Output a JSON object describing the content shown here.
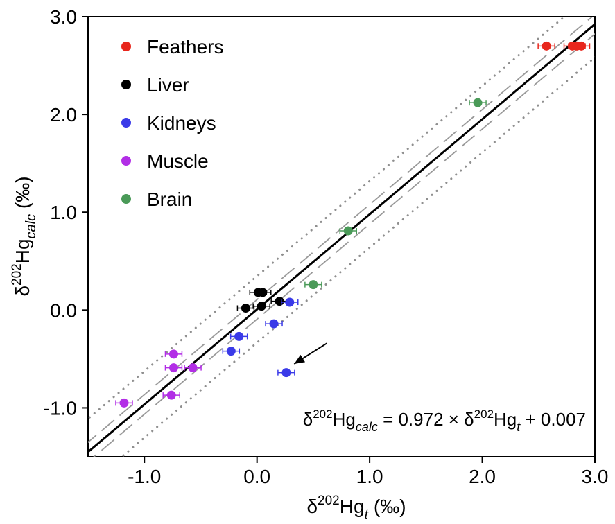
{
  "chart_data": {
    "type": "scatter",
    "xlabel": {
      "prefix": "δ",
      "sup": "202",
      "base": "Hg",
      "sub": "t",
      "unit": " (‰)"
    },
    "ylabel": {
      "prefix": "δ",
      "sup": "202",
      "base": "Hg",
      "sub": "calc",
      "unit": " (‰)"
    },
    "xlim": [
      -1.5,
      3.0
    ],
    "ylim": [
      -1.5,
      3.0
    ],
    "xticks": [
      -1.0,
      0.0,
      1.0,
      2.0,
      3.0
    ],
    "xtick_labels": [
      "-1.0",
      "0.0",
      "1.0",
      "2.0",
      "3.0"
    ],
    "yticks": [
      -1.0,
      0.0,
      1.0,
      2.0,
      3.0
    ],
    "ytick_labels": [
      "-1.0",
      "0.0",
      "1.0",
      "2.0",
      "3.0"
    ],
    "grid": false,
    "legend_position": "top-left",
    "fit": {
      "slope": 0.972,
      "intercept": 0.007,
      "confidence_band": 0.1,
      "prediction_band": 0.34
    },
    "equation": {
      "lhs_sup": "202",
      "lhs_base": "Hg",
      "lhs_sub": "calc",
      "middle": " = 0.972 × ",
      "rhs_sup": "202",
      "rhs_base": "Hg",
      "rhs_sub": "t",
      "tail": " + 0.007",
      "delta": "δ"
    },
    "series": [
      {
        "name": "Feathers",
        "color": "#e8261c",
        "points": [
          [
            2.57,
            2.7
          ],
          [
            2.8,
            2.7
          ],
          [
            2.84,
            2.7
          ],
          [
            2.88,
            2.7
          ]
        ]
      },
      {
        "name": "Liver",
        "color": "#000000",
        "points": [
          [
            -0.1,
            0.02
          ],
          [
            0.01,
            0.18
          ],
          [
            0.05,
            0.18
          ],
          [
            0.04,
            0.04
          ],
          [
            0.2,
            0.09
          ]
        ]
      },
      {
        "name": "Kidneys",
        "color": "#3a3ae8",
        "points": [
          [
            0.29,
            0.08
          ],
          [
            0.15,
            -0.14
          ],
          [
            -0.16,
            -0.27
          ],
          [
            -0.23,
            -0.42
          ],
          [
            0.26,
            -0.64
          ]
        ]
      },
      {
        "name": "Muscle",
        "color": "#b22ee6",
        "points": [
          [
            -0.74,
            -0.45
          ],
          [
            -0.74,
            -0.59
          ],
          [
            -0.57,
            -0.59
          ],
          [
            -0.76,
            -0.87
          ],
          [
            -1.18,
            -0.95
          ]
        ]
      },
      {
        "name": "Brain",
        "color": "#4a9a58",
        "points": [
          [
            1.96,
            2.12
          ],
          [
            0.81,
            0.81
          ],
          [
            0.5,
            0.26
          ]
        ]
      }
    ],
    "annotations": [
      {
        "type": "arrow",
        "from": [
          0.62,
          -0.34
        ],
        "to": [
          0.33,
          -0.55
        ]
      }
    ]
  }
}
